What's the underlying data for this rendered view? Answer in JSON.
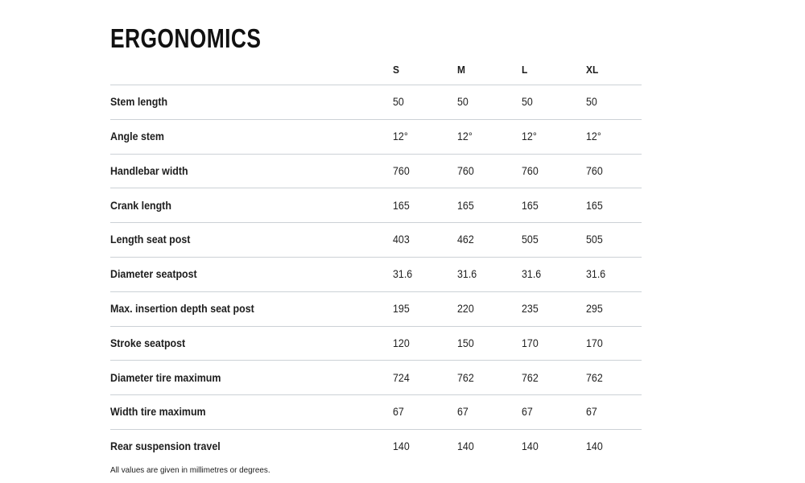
{
  "page": {
    "title": "ERGONOMICS",
    "footnote": "All values are given in millimetres or degrees."
  },
  "table": {
    "size_headers": [
      "S",
      "M",
      "L",
      "XL"
    ],
    "rows": [
      {
        "label": "Stem length",
        "values": [
          "50",
          "50",
          "50",
          "50"
        ]
      },
      {
        "label": "Angle stem",
        "values": [
          "12°",
          "12°",
          "12°",
          "12°"
        ]
      },
      {
        "label": "Handlebar width",
        "values": [
          "760",
          "760",
          "760",
          "760"
        ]
      },
      {
        "label": "Crank length",
        "values": [
          "165",
          "165",
          "165",
          "165"
        ]
      },
      {
        "label": "Length seat post",
        "values": [
          "403",
          "462",
          "505",
          "505"
        ]
      },
      {
        "label": "Diameter seatpost",
        "values": [
          "31.6",
          "31.6",
          "31.6",
          "31.6"
        ]
      },
      {
        "label": "Max. insertion depth seat post",
        "values": [
          "195",
          "220",
          "235",
          "295"
        ]
      },
      {
        "label": "Stroke seatpost",
        "values": [
          "120",
          "150",
          "170",
          "170"
        ]
      },
      {
        "label": "Diameter tire maximum",
        "values": [
          "724",
          "762",
          "762",
          "762"
        ]
      },
      {
        "label": "Width tire maximum",
        "values": [
          "67",
          "67",
          "67",
          "67"
        ]
      },
      {
        "label": "Rear suspension travel",
        "values": [
          "140",
          "140",
          "140",
          "140"
        ]
      }
    ]
  },
  "colors": {
    "text": "#1d1d1d",
    "divider": "#ccd1d6",
    "background": "#ffffff"
  }
}
